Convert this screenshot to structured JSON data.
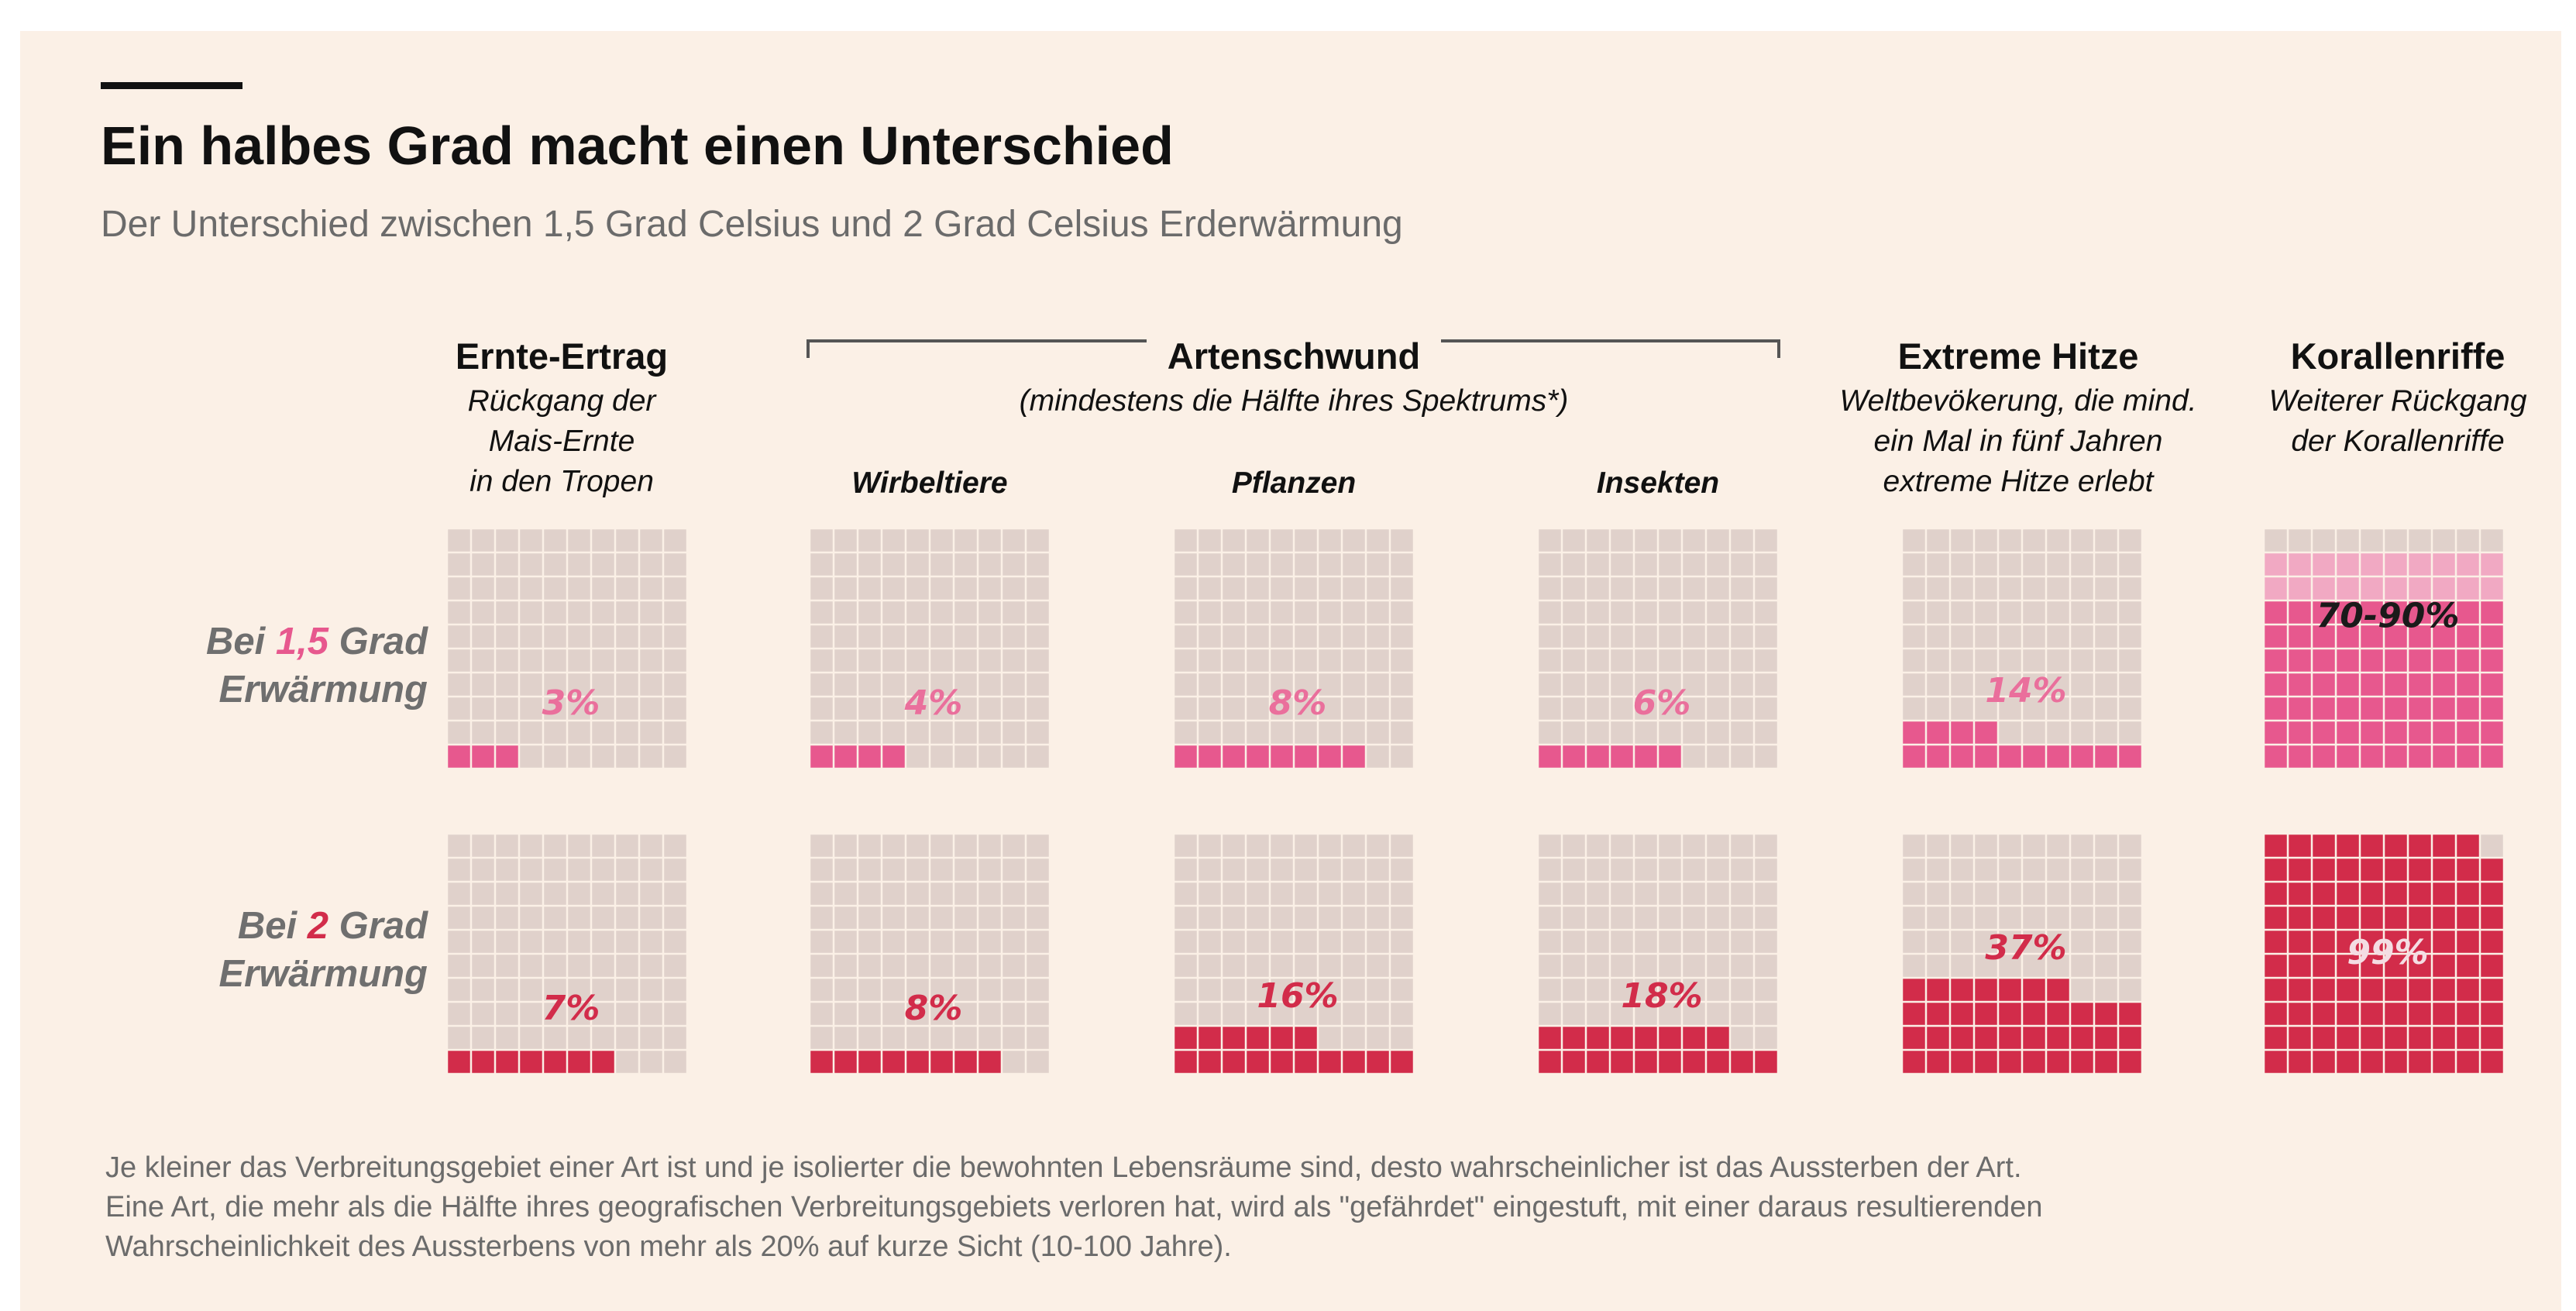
{
  "title": "Ein halbes Grad macht einen Unterschied",
  "subtitle": "Der Unterschied zwischen 1,5 Grad Celsius und 2 Grad Celsius Erderwärmung",
  "colors": {
    "background": "#fbf0e6",
    "empty_cell": "#e0d1cb",
    "light_pink": "#f1a9c3",
    "pink": "#e7588e",
    "red": "#d22c4a",
    "label_gray": "#6f6f6f"
  },
  "categories": {
    "crop": {
      "title": "Ernte-Ertrag",
      "desc": [
        "Rückgang der",
        "Mais-Ernte",
        "in den Tropen"
      ]
    },
    "species": {
      "title": "Artenschwund",
      "desc": "(mindestens die Hälfte ihres Spektrums*)",
      "sub": [
        "Wirbeltiere",
        "Pflanzen",
        "Insekten"
      ]
    },
    "heat": {
      "title": "Extreme Hitze",
      "desc": [
        "Weltbevökerung, die mind.",
        "ein Mal in fünf Jahren",
        "extreme Hitze erlebt"
      ]
    },
    "coral": {
      "title": "Korallenriffe",
      "desc": [
        "Weiterer Rückgang",
        "der Korallenriffe"
      ]
    }
  },
  "rows": [
    {
      "prefix": "Bei ",
      "num": "1,5",
      "suffix": " Grad",
      "line2": "Erwärmung",
      "num_color": "#e7588e"
    },
    {
      "prefix": "Bei ",
      "num": "2",
      "suffix": " Grad",
      "line2": "Erwärmung",
      "num_color": "#d22c4a"
    }
  ],
  "footnote": [
    "Je kleiner das Verbreitungsgebiet einer Art ist und je isolierter die bewohnten Lebensräume sind, desto wahrscheinlicher ist das Aussterben der Art.",
    "Eine Art, die mehr als die Hälfte ihres geografischen Verbreitungsgebiets verloren hat, wird als \"gefährdet\" eingestuft, mit einer daraus resultierenden",
    "Wahrscheinlichkeit des Aussterbens von mehr als 20% auf kurze Sicht (10-100 Jahre)."
  ],
  "chart_data": {
    "type": "waffle",
    "grid": "10x10 (100 cells, 1 cell = 1%)",
    "categories": [
      "Ernte-Ertrag",
      "Wirbeltiere",
      "Pflanzen",
      "Insekten",
      "Extreme Hitze",
      "Korallenriffe"
    ],
    "series": [
      {
        "name": "Bei 1,5 Grad Erwärmung",
        "color": "#e7588e",
        "labels": [
          "3%",
          "4%",
          "8%",
          "6%",
          "14%",
          "70-90%"
        ],
        "values": [
          3,
          4,
          8,
          6,
          14,
          90
        ],
        "range_low": [
          null,
          null,
          null,
          null,
          null,
          70
        ]
      },
      {
        "name": "Bei 2 Grad Erwärmung",
        "color": "#d22c4a",
        "labels": [
          "7%",
          "8%",
          "16%",
          "18%",
          "37%",
          "99%"
        ],
        "values": [
          7,
          8,
          16,
          18,
          37,
          99
        ]
      }
    ]
  }
}
